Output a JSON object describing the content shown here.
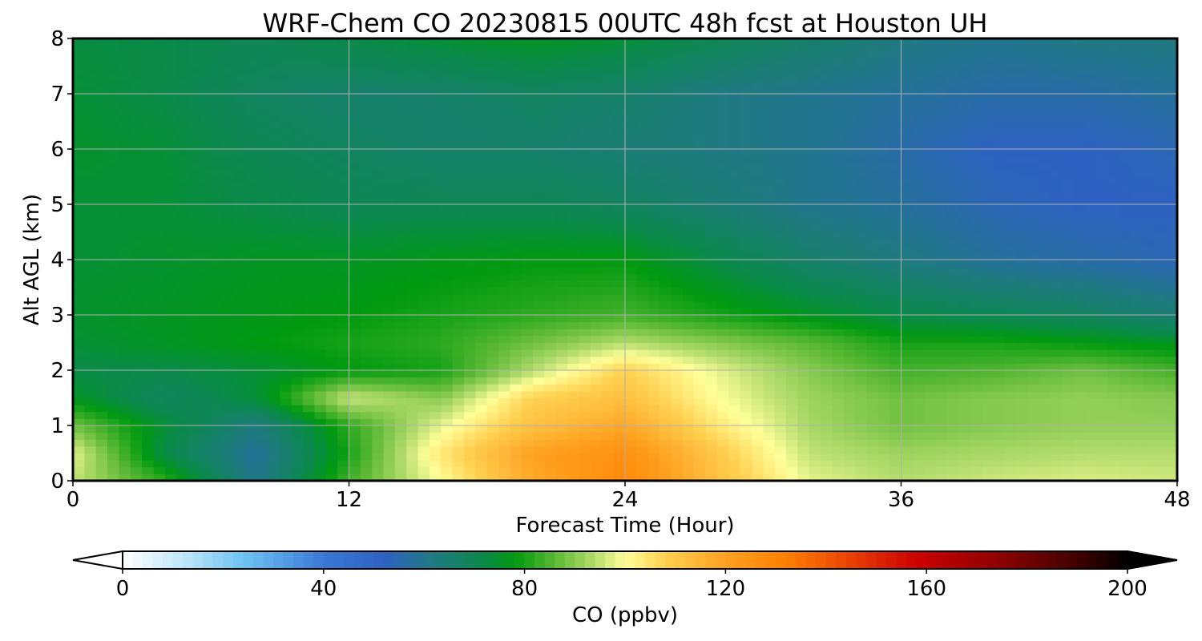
{
  "chart_data": {
    "type": "heatmap",
    "title": "WRF-Chem CO  20230815 00UTC 48h fcst at Houston UH",
    "xlabel": "Forecast Time (Hour)",
    "ylabel": "Alt AGL (km)",
    "xlim": [
      0,
      48
    ],
    "ylim": [
      0,
      8
    ],
    "xticks": [
      "0",
      "12",
      "24",
      "36",
      "48"
    ],
    "yticks": [
      "0",
      "1",
      "2",
      "3",
      "4",
      "5",
      "6",
      "7",
      "8"
    ],
    "grid": true,
    "x": [
      0,
      4,
      8,
      12,
      16,
      20,
      24,
      28,
      32,
      36,
      40,
      44,
      48
    ],
    "y": [
      0,
      0.5,
      1,
      1.5,
      2,
      2.5,
      3,
      4,
      5,
      6,
      7,
      8
    ],
    "z": [
      [
        95,
        82,
        60,
        84,
        100,
        118,
        128,
        112,
        98,
        94,
        96,
        97,
        96
      ],
      [
        98,
        72,
        58,
        80,
        104,
        120,
        126,
        110,
        95,
        92,
        93,
        94,
        94
      ],
      [
        88,
        74,
        62,
        82,
        98,
        112,
        118,
        104,
        93,
        88,
        90,
        91,
        91
      ],
      [
        76,
        68,
        74,
        96,
        90,
        108,
        112,
        100,
        92,
        88,
        90,
        91,
        90
      ],
      [
        72,
        72,
        74,
        78,
        80,
        94,
        108,
        98,
        90,
        84,
        85,
        88,
        84
      ],
      [
        74,
        76,
        78,
        80,
        82,
        88,
        94,
        90,
        86,
        80,
        80,
        78,
        76
      ],
      [
        75,
        76,
        77,
        78,
        80,
        82,
        84,
        80,
        76,
        72,
        70,
        68,
        64
      ],
      [
        74,
        75,
        76,
        76,
        77,
        78,
        78,
        72,
        66,
        62,
        58,
        56,
        54
      ],
      [
        74,
        74,
        72,
        70,
        70,
        70,
        68,
        64,
        60,
        58,
        54,
        52,
        52
      ],
      [
        75,
        74,
        70,
        68,
        66,
        66,
        64,
        62,
        60,
        56,
        52,
        52,
        54
      ],
      [
        74,
        72,
        68,
        66,
        66,
        68,
        66,
        62,
        60,
        58,
        56,
        56,
        58
      ],
      [
        73,
        72,
        70,
        72,
        74,
        76,
        74,
        70,
        66,
        62,
        60,
        62,
        62
      ]
    ],
    "colorbar": {
      "label": "CO  (ppbv)",
      "min": 0,
      "max": 200,
      "ticks": [
        "0",
        "40",
        "80",
        "120",
        "160",
        "200"
      ],
      "extend": "both",
      "color_stops": [
        [
          0,
          "#ffffff"
        ],
        [
          12,
          "#bfe6f8"
        ],
        [
          24,
          "#6ec3f2"
        ],
        [
          40,
          "#3a78d6"
        ],
        [
          52,
          "#2e62c2"
        ],
        [
          62,
          "#1f7a80"
        ],
        [
          72,
          "#0a8a4a"
        ],
        [
          78,
          "#009a10"
        ],
        [
          86,
          "#5ab833"
        ],
        [
          94,
          "#b4dc6e"
        ],
        [
          100,
          "#ffff99"
        ],
        [
          108,
          "#ffd050"
        ],
        [
          120,
          "#ffa020"
        ],
        [
          132,
          "#ff8000"
        ],
        [
          145,
          "#e84000"
        ],
        [
          158,
          "#cc0000"
        ],
        [
          175,
          "#8b0000"
        ],
        [
          190,
          "#400000"
        ],
        [
          200,
          "#000000"
        ]
      ]
    }
  }
}
